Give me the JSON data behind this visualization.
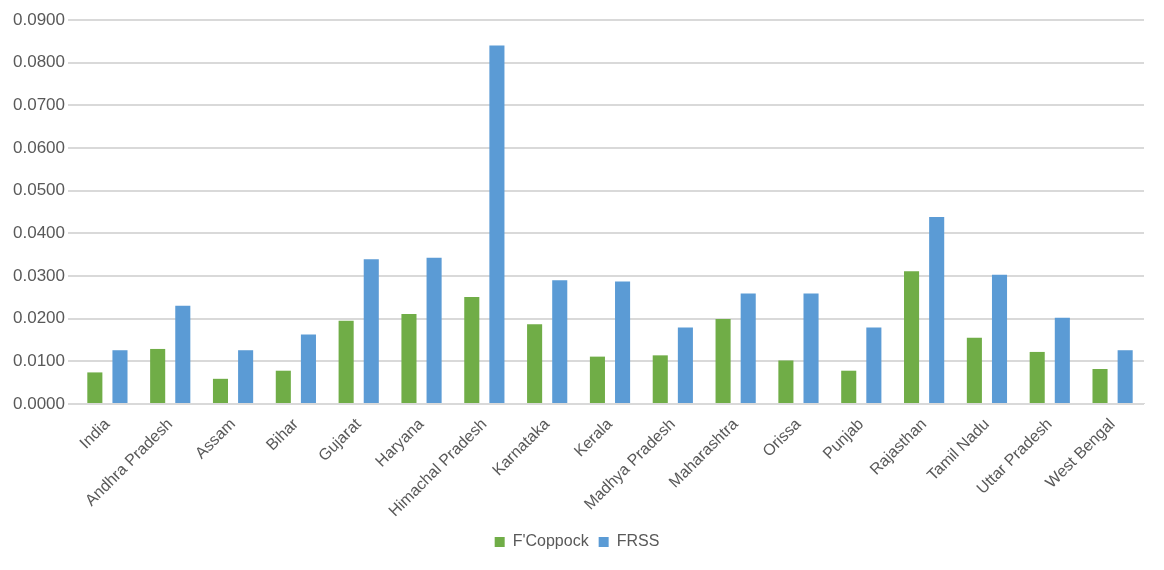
{
  "chart_data": {
    "type": "bar",
    "categories": [
      "India",
      "Andhra Pradesh",
      "Assam",
      "Bihar",
      "Gujarat",
      "Haryana",
      "Himachal Pradesh",
      "Karnataka",
      "Kerala",
      "Madhya Pradesh",
      "Maharashtra",
      "Orissa",
      "Punjab",
      "Rajasthan",
      "Tamil Nadu",
      "Uttar Pradesh",
      "West Bengal"
    ],
    "series": [
      {
        "name": "F'Coppock",
        "color": "#70ad47",
        "values": [
          0.0074,
          0.0129,
          0.0059,
          0.0078,
          0.0195,
          0.0211,
          0.0251,
          0.0187,
          0.0111,
          0.0114,
          0.0199,
          0.0102,
          0.0078,
          0.0311,
          0.0155,
          0.0122,
          0.0082
        ]
      },
      {
        "name": "FRSS",
        "color": "#5b9bd5",
        "values": [
          0.0126,
          0.023,
          0.0126,
          0.0163,
          0.0339,
          0.0343,
          0.084,
          0.029,
          0.0287,
          0.0179,
          0.0259,
          0.0259,
          0.0179,
          0.0438,
          0.0303,
          0.0202,
          0.0126
        ]
      }
    ],
    "ylim": [
      0,
      0.09
    ],
    "yticks": [
      {
        "value": 0,
        "label": "0.0000"
      },
      {
        "value": 0.01,
        "label": "0.0100"
      },
      {
        "value": 0.02,
        "label": "0.0200"
      },
      {
        "value": 0.03,
        "label": "0.0300"
      },
      {
        "value": 0.04,
        "label": "0.0400"
      },
      {
        "value": 0.05,
        "label": "0.0500"
      },
      {
        "value": 0.06,
        "label": "0.0600"
      },
      {
        "value": 0.07,
        "label": "0.0700"
      },
      {
        "value": 0.08,
        "label": "0.0800"
      },
      {
        "value": 0.09,
        "label": "0.0900"
      }
    ],
    "grid": "y",
    "legend": "bottom"
  }
}
